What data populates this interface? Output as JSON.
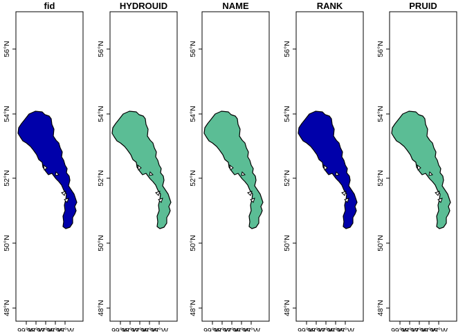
{
  "panels": [
    {
      "title": "fid",
      "fill": "#0000aa"
    },
    {
      "title": "HYDROUID",
      "fill": "#5bbd95"
    },
    {
      "title": "NAME",
      "fill": "#5bbd95"
    },
    {
      "title": "RANK",
      "fill": "#0000aa"
    },
    {
      "title": "PRUID",
      "fill": "#5bbd95"
    }
  ],
  "y_ticks": [
    "48°N",
    "50°N",
    "52°N",
    "54°N",
    "56°N"
  ],
  "x_ticks": [
    "99°W",
    "98°W",
    "97°W",
    "96°W",
    "95°W"
  ],
  "outline_color": "#000000"
}
